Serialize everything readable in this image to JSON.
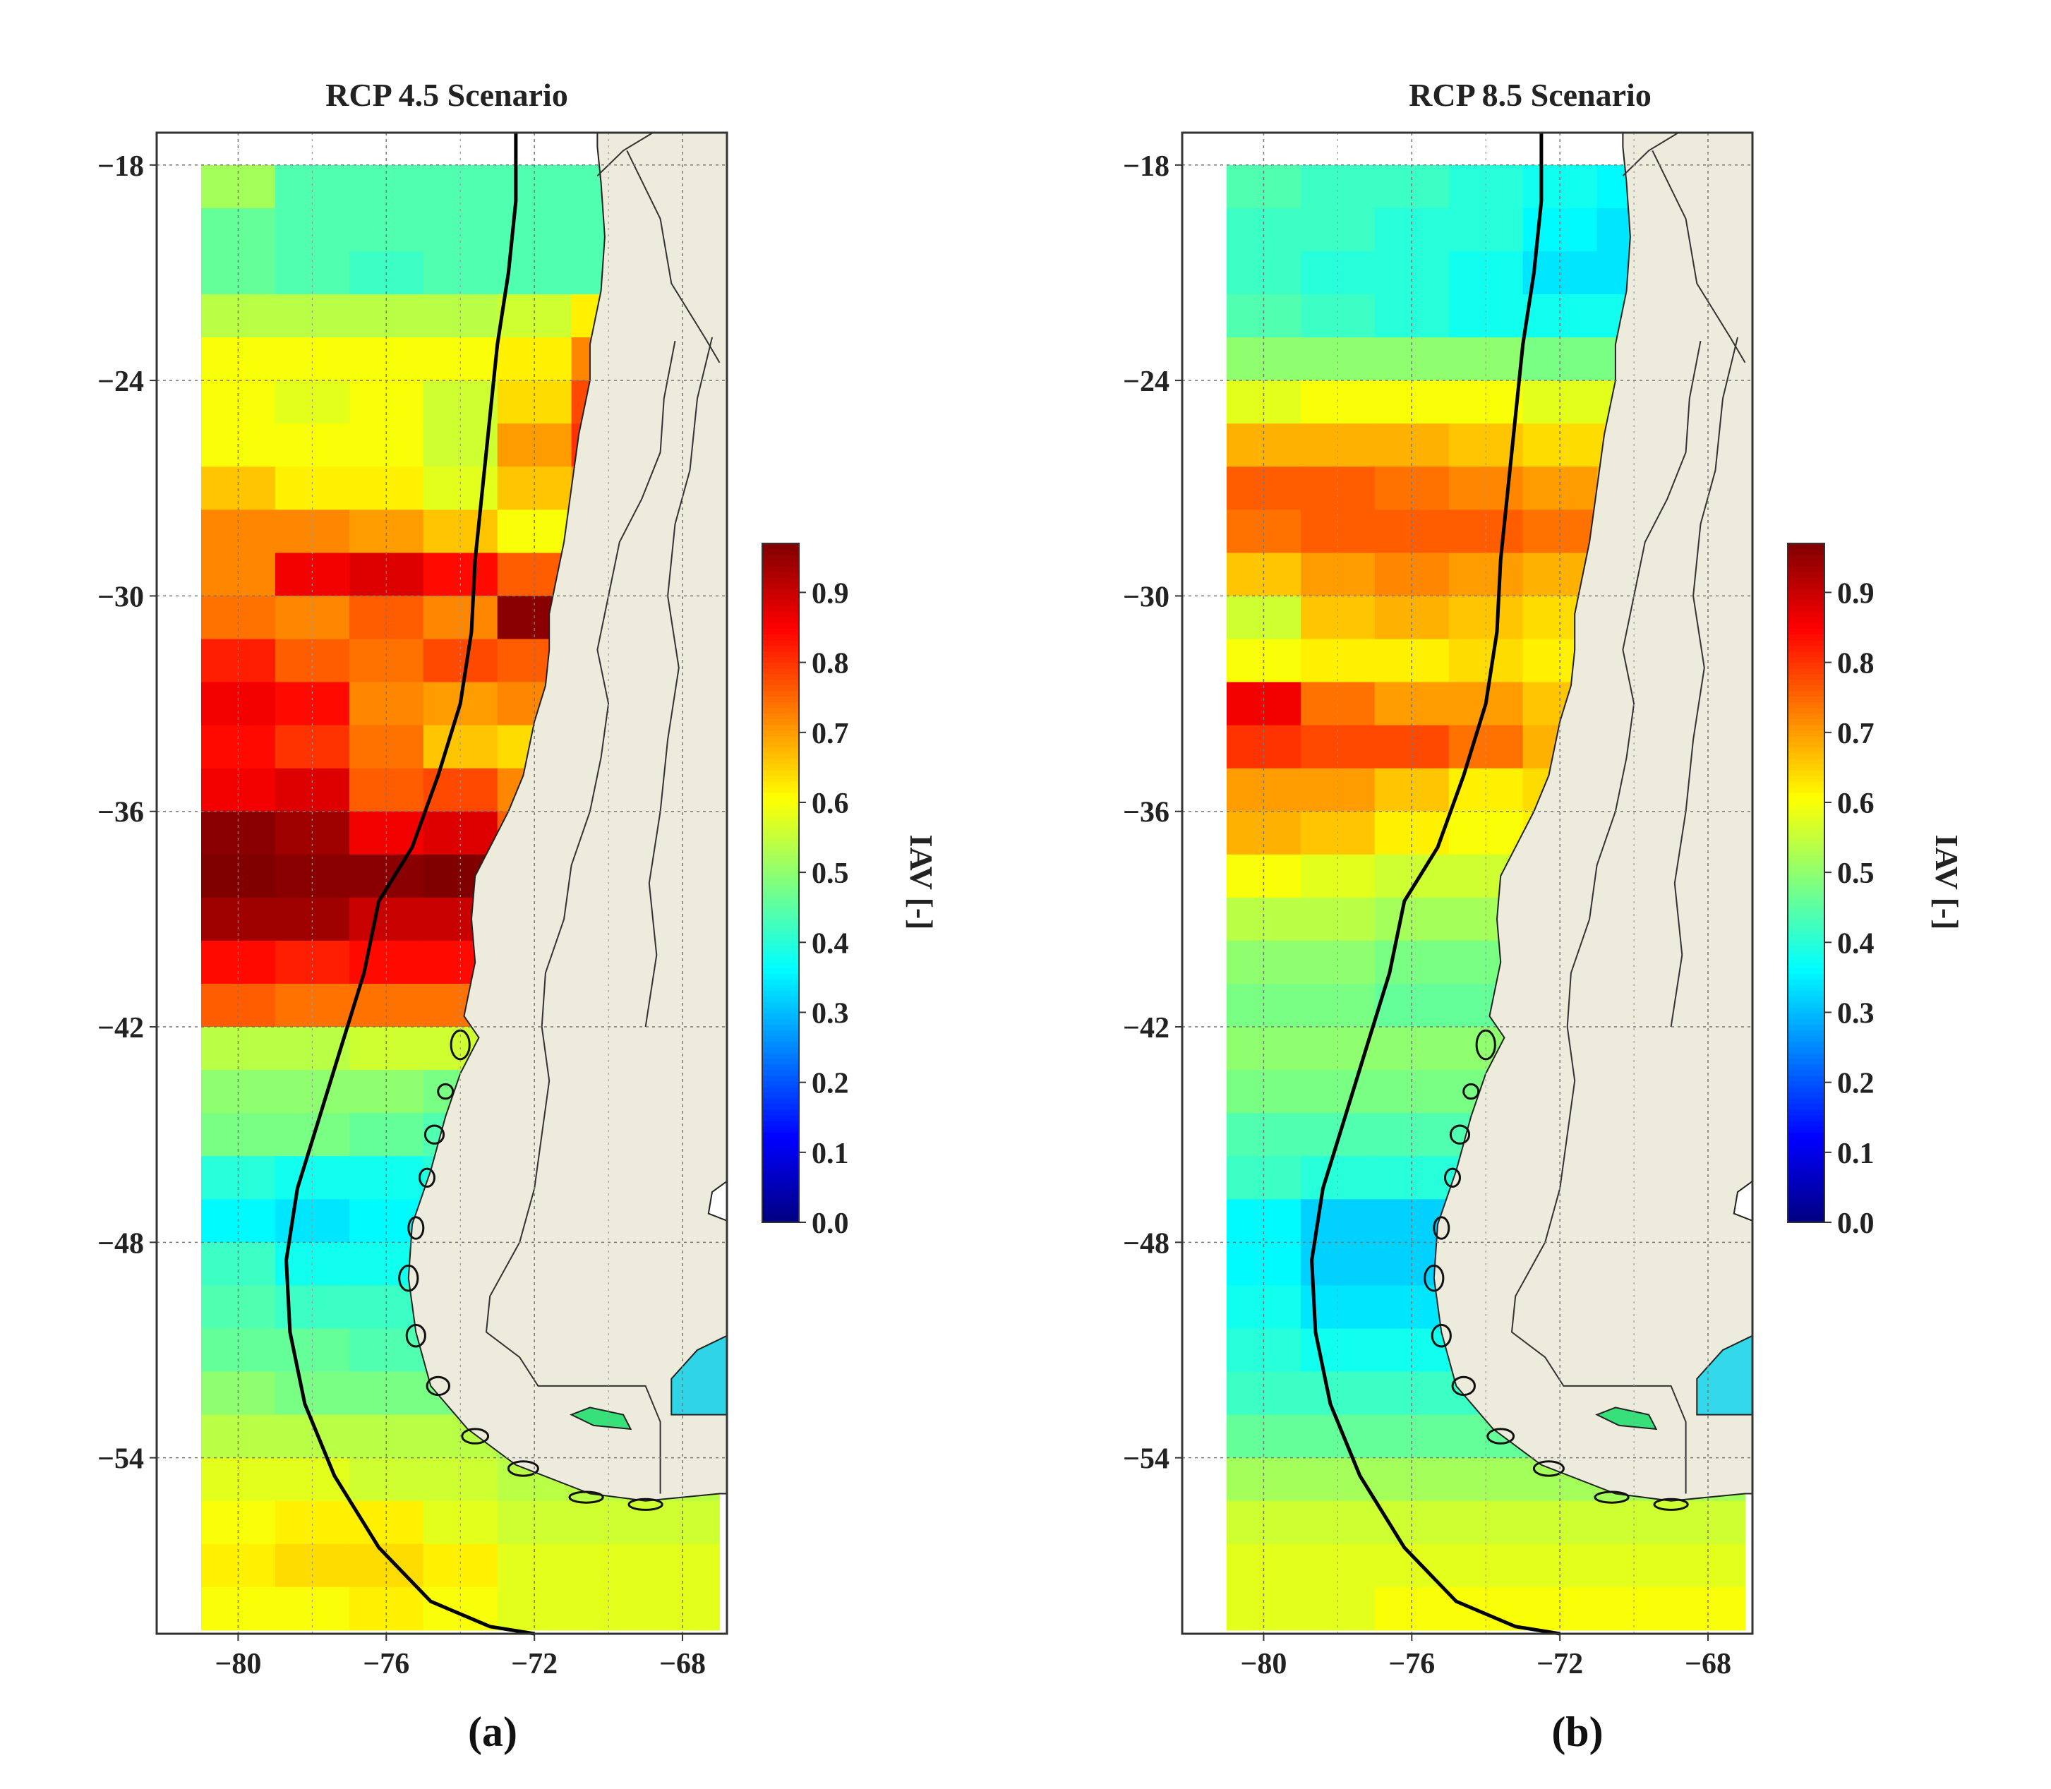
{
  "figure": {
    "panels": [
      {
        "id": "a",
        "title": "RCP 4.5 Scenario",
        "sublabel": "(a)",
        "colorbar_label": "IAV [-]"
      },
      {
        "id": "b",
        "title": "RCP 8.5 Scenario",
        "sublabel": "(b)",
        "colorbar_label": "IAV [-]"
      }
    ]
  },
  "chart_data": [
    {
      "type": "heatmap",
      "title": "RCP 4.5 Scenario",
      "xlabel": "",
      "ylabel": "",
      "x_ticks": [
        "−80",
        "−76",
        "−72",
        "−68"
      ],
      "y_ticks": [
        "−18",
        "−24",
        "−30",
        "−36",
        "−42",
        "−48",
        "−54"
      ],
      "xlim": [
        -82.2,
        -66.8
      ],
      "ylim": [
        -58.9,
        -17.1
      ],
      "grid": true,
      "colorbar": {
        "label": "IAV [-]",
        "range": [
          0.0,
          0.97
        ],
        "ticks": [
          "0.0",
          "0.1",
          "0.2",
          "0.3",
          "0.4",
          "0.5",
          "0.6",
          "0.7",
          "0.8",
          "0.9"
        ]
      },
      "cell_deg": {
        "lon": 2.0,
        "lat": 1.2
      },
      "lon_origin": -81.0,
      "lat_origin": -18.0,
      "values": [
        [
          0.52,
          0.44,
          0.44,
          0.44,
          0.44,
          0.44,
          0.5
        ],
        [
          0.46,
          0.44,
          0.44,
          0.44,
          0.44,
          0.44,
          0.48
        ],
        [
          0.46,
          0.44,
          0.42,
          0.44,
          0.44,
          0.44,
          0.48
        ],
        [
          0.54,
          0.54,
          0.54,
          0.54,
          0.56,
          0.62,
          0.58
        ],
        [
          0.6,
          0.6,
          0.6,
          0.6,
          0.62,
          0.72,
          0.64
        ],
        [
          0.6,
          0.58,
          0.6,
          0.56,
          0.64,
          0.78,
          0.66
        ],
        [
          0.6,
          0.6,
          0.6,
          0.56,
          0.7,
          0.8,
          0.64
        ],
        [
          0.66,
          0.62,
          0.62,
          0.58,
          0.66,
          0.7,
          0.62
        ],
        [
          0.72,
          0.72,
          0.7,
          0.66,
          0.6,
          0.62,
          0.62
        ],
        [
          0.72,
          0.86,
          0.88,
          0.84,
          0.76,
          0.78,
          0.64
        ],
        [
          0.74,
          0.72,
          0.76,
          0.72,
          0.96,
          0.9,
          0.68
        ],
        [
          0.82,
          0.76,
          0.74,
          0.78,
          0.76,
          0.96,
          0.66
        ],
        [
          0.86,
          0.84,
          0.72,
          0.7,
          0.72,
          0.7,
          0.6
        ],
        [
          0.84,
          0.8,
          0.74,
          0.66,
          0.64,
          0.62,
          0.58
        ],
        [
          0.86,
          0.88,
          0.76,
          0.78,
          0.72,
          0.6,
          0.6
        ],
        [
          0.96,
          0.94,
          0.86,
          0.88,
          0.76,
          0.64,
          0.62
        ],
        [
          0.98,
          0.96,
          0.96,
          0.98,
          0.88,
          0.66,
          0.62
        ],
        [
          0.94,
          0.94,
          0.9,
          0.9,
          0.84,
          0.64,
          0.62
        ],
        [
          0.84,
          0.82,
          0.84,
          0.84,
          0.8,
          0.66,
          0.6
        ],
        [
          0.76,
          0.74,
          0.74,
          0.74,
          0.72,
          0.72,
          0.6
        ],
        [
          0.54,
          0.54,
          0.56,
          0.56,
          0.54,
          0.54,
          0.52
        ],
        [
          0.5,
          0.5,
          0.5,
          0.48,
          0.52,
          0.5,
          0.5
        ],
        [
          0.48,
          0.48,
          0.46,
          0.44,
          0.46,
          0.44,
          0.46
        ],
        [
          0.4,
          0.38,
          0.38,
          0.4,
          0.44,
          0.44,
          0.44
        ],
        [
          0.36,
          0.34,
          0.36,
          0.4,
          0.44,
          0.46,
          0.44
        ],
        [
          0.42,
          0.38,
          0.38,
          0.42,
          0.44,
          0.44,
          0.44
        ],
        [
          0.44,
          0.42,
          0.42,
          0.44,
          0.44,
          0.44,
          0.42
        ],
        [
          0.46,
          0.46,
          0.44,
          0.44,
          0.46,
          0.46,
          0.46
        ],
        [
          0.5,
          0.48,
          0.48,
          0.48,
          0.5,
          0.48,
          0.48
        ],
        [
          0.54,
          0.54,
          0.54,
          0.54,
          0.52,
          0.52,
          0.52
        ],
        [
          0.58,
          0.58,
          0.56,
          0.56,
          0.54,
          0.54,
          0.54
        ],
        [
          0.6,
          0.62,
          0.62,
          0.58,
          0.56,
          0.56,
          0.56
        ],
        [
          0.62,
          0.64,
          0.64,
          0.62,
          0.58,
          0.58,
          0.58
        ],
        [
          0.6,
          0.6,
          0.62,
          0.6,
          0.58,
          0.58,
          0.58
        ]
      ]
    },
    {
      "type": "heatmap",
      "title": "RCP 8.5 Scenario",
      "xlabel": "",
      "ylabel": "",
      "x_ticks": [
        "−80",
        "−76",
        "−72",
        "−68"
      ],
      "y_ticks": [
        "−18",
        "−24",
        "−30",
        "−36",
        "−42",
        "−48",
        "−54"
      ],
      "xlim": [
        -82.2,
        -66.8
      ],
      "ylim": [
        -58.9,
        -17.1
      ],
      "grid": true,
      "colorbar": {
        "label": "IAV [-]",
        "range": [
          0.0,
          0.97
        ],
        "ticks": [
          "0.0",
          "0.1",
          "0.2",
          "0.3",
          "0.4",
          "0.5",
          "0.6",
          "0.7",
          "0.8",
          "0.9"
        ]
      },
      "cell_deg": {
        "lon": 2.0,
        "lat": 1.2
      },
      "lon_origin": -81.0,
      "lat_origin": -18.0,
      "values": [
        [
          0.44,
          0.42,
          0.42,
          0.4,
          0.38,
          0.36,
          0.38
        ],
        [
          0.42,
          0.42,
          0.4,
          0.4,
          0.36,
          0.34,
          0.36
        ],
        [
          0.42,
          0.4,
          0.4,
          0.38,
          0.34,
          0.34,
          0.36
        ],
        [
          0.44,
          0.42,
          0.4,
          0.38,
          0.38,
          0.38,
          0.4
        ],
        [
          0.5,
          0.5,
          0.5,
          0.5,
          0.48,
          0.48,
          0.5
        ],
        [
          0.58,
          0.6,
          0.6,
          0.6,
          0.58,
          0.58,
          0.58
        ],
        [
          0.68,
          0.68,
          0.68,
          0.66,
          0.64,
          0.64,
          0.62
        ],
        [
          0.76,
          0.76,
          0.74,
          0.72,
          0.7,
          0.68,
          0.64
        ],
        [
          0.74,
          0.76,
          0.76,
          0.76,
          0.74,
          0.68,
          0.64
        ],
        [
          0.66,
          0.7,
          0.72,
          0.7,
          0.68,
          0.66,
          0.62
        ],
        [
          0.56,
          0.66,
          0.68,
          0.66,
          0.64,
          0.62,
          0.6
        ],
        [
          0.6,
          0.62,
          0.62,
          0.64,
          0.62,
          0.6,
          0.58
        ],
        [
          0.86,
          0.74,
          0.7,
          0.7,
          0.66,
          0.66,
          0.62
        ],
        [
          0.8,
          0.78,
          0.78,
          0.74,
          0.68,
          0.66,
          0.62
        ],
        [
          0.7,
          0.7,
          0.66,
          0.62,
          0.64,
          0.64,
          0.62
        ],
        [
          0.68,
          0.66,
          0.62,
          0.6,
          0.62,
          0.64,
          0.62
        ],
        [
          0.6,
          0.58,
          0.56,
          0.56,
          0.58,
          0.62,
          0.6
        ],
        [
          0.54,
          0.54,
          0.52,
          0.52,
          0.5,
          0.5,
          0.5
        ],
        [
          0.5,
          0.5,
          0.48,
          0.48,
          0.46,
          0.48,
          0.48
        ],
        [
          0.48,
          0.48,
          0.46,
          0.46,
          0.46,
          0.46,
          0.46
        ],
        [
          0.5,
          0.5,
          0.5,
          0.5,
          0.5,
          0.5,
          0.5
        ],
        [
          0.48,
          0.48,
          0.48,
          0.48,
          0.48,
          0.48,
          0.48
        ],
        [
          0.44,
          0.44,
          0.44,
          0.44,
          0.44,
          0.44,
          0.44
        ],
        [
          0.42,
          0.4,
          0.4,
          0.4,
          0.4,
          0.4,
          0.4
        ],
        [
          0.36,
          0.32,
          0.32,
          0.34,
          0.36,
          0.38,
          0.38
        ],
        [
          0.36,
          0.32,
          0.32,
          0.34,
          0.36,
          0.38,
          0.38
        ],
        [
          0.38,
          0.34,
          0.34,
          0.36,
          0.38,
          0.4,
          0.4
        ],
        [
          0.4,
          0.38,
          0.38,
          0.4,
          0.4,
          0.4,
          0.4
        ],
        [
          0.42,
          0.42,
          0.42,
          0.42,
          0.42,
          0.42,
          0.42
        ],
        [
          0.46,
          0.46,
          0.46,
          0.46,
          0.46,
          0.46,
          0.46
        ],
        [
          0.52,
          0.52,
          0.52,
          0.52,
          0.52,
          0.52,
          0.52
        ],
        [
          0.56,
          0.56,
          0.56,
          0.56,
          0.56,
          0.56,
          0.56
        ],
        [
          0.58,
          0.58,
          0.58,
          0.58,
          0.58,
          0.58,
          0.58
        ],
        [
          0.58,
          0.58,
          0.6,
          0.6,
          0.6,
          0.6,
          0.6
        ]
      ]
    }
  ]
}
